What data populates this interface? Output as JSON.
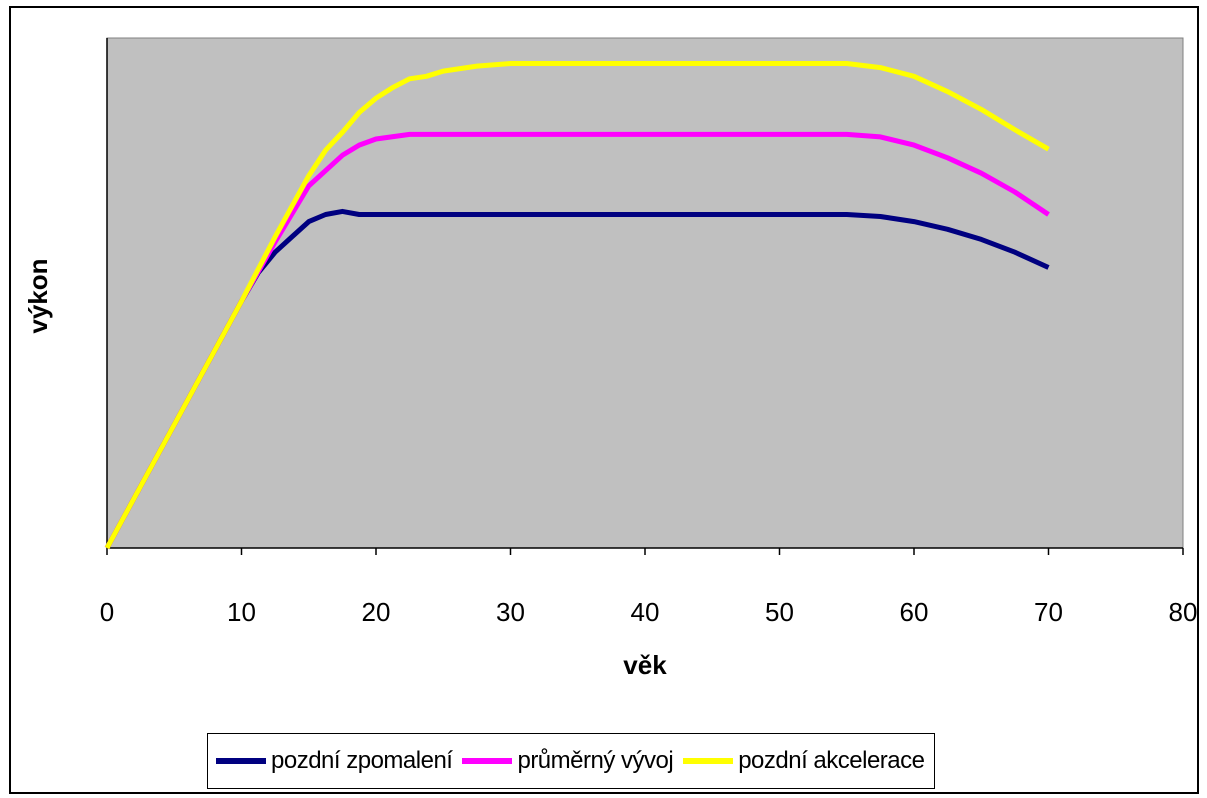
{
  "chart_data": {
    "type": "line",
    "xlabel": "věk",
    "ylabel": "výkon",
    "xlim": [
      0,
      80
    ],
    "ylim": [
      0,
      100
    ],
    "x_ticks": [
      "0",
      "10",
      "20",
      "30",
      "40",
      "50",
      "60",
      "70",
      "80"
    ],
    "show_y_ticks": false,
    "grid": false,
    "plot_background": "#c0c0c0",
    "legend_position": "bottom",
    "series": [
      {
        "name": "pozdní zpomalení",
        "color": "#000080",
        "points": [
          [
            0,
            0
          ],
          [
            2.5,
            12.1
          ],
          [
            5,
            24.2
          ],
          [
            7.5,
            36.3
          ],
          [
            10,
            48.4
          ],
          [
            11.25,
            54
          ],
          [
            12.5,
            58
          ],
          [
            13.75,
            61
          ],
          [
            15,
            64
          ],
          [
            16.25,
            65.4
          ],
          [
            17.5,
            66
          ],
          [
            18.75,
            65.4
          ],
          [
            20,
            65.4
          ],
          [
            25,
            65.4
          ],
          [
            30,
            65.4
          ],
          [
            40,
            65.4
          ],
          [
            50,
            65.4
          ],
          [
            55,
            65.4
          ],
          [
            57.5,
            65
          ],
          [
            60,
            64
          ],
          [
            62.5,
            62.5
          ],
          [
            65,
            60.5
          ],
          [
            67.5,
            58
          ],
          [
            70,
            55
          ]
        ]
      },
      {
        "name": "průměrný vývoj",
        "color": "#ff00ff",
        "points": [
          [
            0,
            0
          ],
          [
            2.5,
            12.1
          ],
          [
            5,
            24.2
          ],
          [
            7.5,
            36.3
          ],
          [
            10,
            48.4
          ],
          [
            12.5,
            60
          ],
          [
            15,
            71
          ],
          [
            17.5,
            77
          ],
          [
            18.75,
            79
          ],
          [
            20,
            80.2
          ],
          [
            22.5,
            81.1
          ],
          [
            25,
            81.1
          ],
          [
            30,
            81.1
          ],
          [
            40,
            81.1
          ],
          [
            50,
            81.1
          ],
          [
            55,
            81.1
          ],
          [
            57.5,
            80.6
          ],
          [
            60,
            79
          ],
          [
            62.5,
            76.5
          ],
          [
            65,
            73.5
          ],
          [
            67.5,
            69.8
          ],
          [
            70,
            65.4
          ]
        ]
      },
      {
        "name": "pozdní akcelerace",
        "color": "#ffff00",
        "points": [
          [
            0,
            0
          ],
          [
            2.5,
            12.1
          ],
          [
            5,
            24.2
          ],
          [
            7.5,
            36.3
          ],
          [
            10,
            48.4
          ],
          [
            12.5,
            61
          ],
          [
            15,
            73
          ],
          [
            16.25,
            78
          ],
          [
            17.5,
            81.5
          ],
          [
            18.75,
            85.4
          ],
          [
            20,
            88.2
          ],
          [
            21.25,
            90.3
          ],
          [
            22.5,
            92
          ],
          [
            23.75,
            92.5
          ],
          [
            25,
            93.5
          ],
          [
            27.5,
            94.5
          ],
          [
            30,
            95
          ],
          [
            40,
            95
          ],
          [
            50,
            95
          ],
          [
            55,
            95
          ],
          [
            57.5,
            94.2
          ],
          [
            60,
            92.5
          ],
          [
            62.5,
            89.5
          ],
          [
            65,
            86
          ],
          [
            67.5,
            82
          ],
          [
            70,
            78.2
          ]
        ]
      }
    ]
  }
}
